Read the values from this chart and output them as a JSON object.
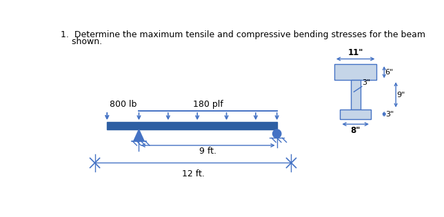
{
  "title_line1": "1.  Determine the maximum tensile and compressive bending stresses for the beam",
  "title_line2": "    shown.",
  "bg_color": "#ffffff",
  "dim_color": "#4472c4",
  "beam_color": "#2e5fa3",
  "text_color": "#000000",
  "cross_section_fill": "#c5d5e8",
  "beam_label": "180 plf",
  "load_label": "800 lb",
  "dist1_label": "9 ft.",
  "dist2_label": "12 ft.",
  "dim_top": "11\"",
  "dim_right_top": "6\"",
  "dim_right_mid": "3\"",
  "dim_right_total": "9\"",
  "dim_right_bot": "3\"",
  "dim_bottom": "8\""
}
